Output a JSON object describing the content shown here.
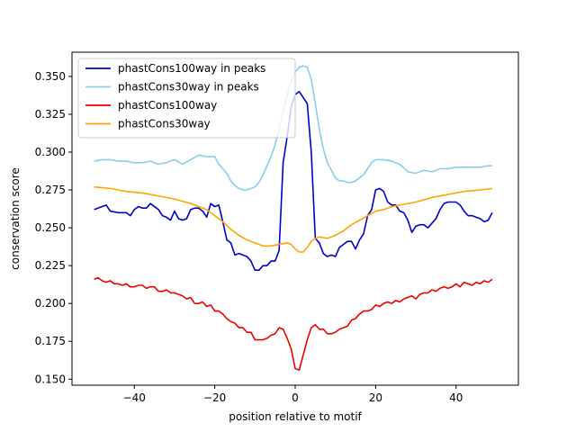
{
  "chart_data": {
    "type": "line",
    "title": "",
    "xlabel": "position relative to motif",
    "ylabel": "conservation score",
    "xlim": [
      -55.5,
      55.5
    ],
    "ylim": [
      0.146,
      0.366
    ],
    "xticks": [
      -40,
      -20,
      0,
      20,
      40
    ],
    "yticks": [
      0.15,
      0.175,
      0.2,
      0.225,
      0.25,
      0.275,
      0.3,
      0.325,
      0.35
    ],
    "ytick_labels": [
      "0.150",
      "0.175",
      "0.200",
      "0.225",
      "0.250",
      "0.275",
      "0.300",
      "0.325",
      "0.350"
    ],
    "grid": false,
    "legend_position": "top-left",
    "series": [
      {
        "name": "phastCons100way in peaks",
        "color": "#0000cd",
        "points": [
          [
            -50,
            0.262
          ],
          [
            -48,
            0.264
          ],
          [
            -47,
            0.265
          ],
          [
            -46,
            0.261
          ],
          [
            -44,
            0.26
          ],
          [
            -42,
            0.26
          ],
          [
            -41,
            0.258
          ],
          [
            -40,
            0.262
          ],
          [
            -39,
            0.264
          ],
          [
            -38,
            0.263
          ],
          [
            -37,
            0.263
          ],
          [
            -36,
            0.266
          ],
          [
            -35,
            0.264
          ],
          [
            -34,
            0.262
          ],
          [
            -33,
            0.258
          ],
          [
            -32,
            0.257
          ],
          [
            -31,
            0.255
          ],
          [
            -30,
            0.261
          ],
          [
            -29,
            0.256
          ],
          [
            -28,
            0.255
          ],
          [
            -27,
            0.256
          ],
          [
            -26,
            0.262
          ],
          [
            -25,
            0.263
          ],
          [
            -24,
            0.263
          ],
          [
            -23,
            0.261
          ],
          [
            -22,
            0.257
          ],
          [
            -21,
            0.266
          ],
          [
            -20,
            0.264
          ],
          [
            -19,
            0.265
          ],
          [
            -18,
            0.254
          ],
          [
            -17,
            0.242
          ],
          [
            -16,
            0.24
          ],
          [
            -15,
            0.232
          ],
          [
            -14,
            0.233
          ],
          [
            -13,
            0.232
          ],
          [
            -12,
            0.231
          ],
          [
            -11,
            0.228
          ],
          [
            -10,
            0.222
          ],
          [
            -9,
            0.222
          ],
          [
            -8,
            0.225
          ],
          [
            -7,
            0.225
          ],
          [
            -6,
            0.228
          ],
          [
            -5,
            0.228
          ],
          [
            -4,
            0.235
          ],
          [
            -3,
            0.293
          ],
          [
            -2,
            0.31
          ],
          [
            -1,
            0.33
          ],
          [
            0,
            0.338
          ],
          [
            1,
            0.34
          ],
          [
            2,
            0.336
          ],
          [
            3,
            0.332
          ],
          [
            4,
            0.3
          ],
          [
            5,
            0.243
          ],
          [
            6,
            0.24
          ],
          [
            7,
            0.233
          ],
          [
            8,
            0.231
          ],
          [
            9,
            0.232
          ],
          [
            10,
            0.231
          ],
          [
            11,
            0.237
          ],
          [
            12,
            0.239
          ],
          [
            13,
            0.241
          ],
          [
            14,
            0.241
          ],
          [
            15,
            0.236
          ],
          [
            16,
            0.242
          ],
          [
            17,
            0.246
          ],
          [
            18,
            0.258
          ],
          [
            19,
            0.262
          ],
          [
            20,
            0.275
          ],
          [
            21,
            0.276
          ],
          [
            22,
            0.274
          ],
          [
            23,
            0.267
          ],
          [
            24,
            0.265
          ],
          [
            25,
            0.265
          ],
          [
            26,
            0.261
          ],
          [
            27,
            0.26
          ],
          [
            28,
            0.255
          ],
          [
            29,
            0.247
          ],
          [
            30,
            0.251
          ],
          [
            31,
            0.252
          ],
          [
            32,
            0.252
          ],
          [
            33,
            0.25
          ],
          [
            34,
            0.253
          ],
          [
            35,
            0.256
          ],
          [
            36,
            0.262
          ],
          [
            37,
            0.266
          ],
          [
            38,
            0.267
          ],
          [
            39,
            0.267
          ],
          [
            40,
            0.267
          ],
          [
            41,
            0.265
          ],
          [
            42,
            0.261
          ],
          [
            43,
            0.258
          ],
          [
            44,
            0.258
          ],
          [
            45,
            0.257
          ],
          [
            46,
            0.256
          ],
          [
            47,
            0.254
          ],
          [
            48,
            0.255
          ],
          [
            49,
            0.26
          ]
        ]
      },
      {
        "name": "phastCons30way in peaks",
        "color": "#87ceeb",
        "points": [
          [
            -50,
            0.294
          ],
          [
            -48,
            0.295
          ],
          [
            -46,
            0.295
          ],
          [
            -44,
            0.294
          ],
          [
            -42,
            0.294
          ],
          [
            -40,
            0.293
          ],
          [
            -38,
            0.293
          ],
          [
            -36,
            0.294
          ],
          [
            -34,
            0.292
          ],
          [
            -32,
            0.293
          ],
          [
            -30,
            0.295
          ],
          [
            -28,
            0.292
          ],
          [
            -26,
            0.295
          ],
          [
            -24,
            0.298
          ],
          [
            -22,
            0.297
          ],
          [
            -20,
            0.297
          ],
          [
            -19,
            0.292
          ],
          [
            -18,
            0.289
          ],
          [
            -17,
            0.286
          ],
          [
            -16,
            0.281
          ],
          [
            -15,
            0.278
          ],
          [
            -14,
            0.276
          ],
          [
            -13,
            0.275
          ],
          [
            -12,
            0.275
          ],
          [
            -11,
            0.276
          ],
          [
            -10,
            0.277
          ],
          [
            -9,
            0.28
          ],
          [
            -8,
            0.285
          ],
          [
            -7,
            0.291
          ],
          [
            -6,
            0.297
          ],
          [
            -5,
            0.305
          ],
          [
            -4,
            0.315
          ],
          [
            -3,
            0.327
          ],
          [
            -2,
            0.338
          ],
          [
            -1,
            0.347
          ],
          [
            0,
            0.353
          ],
          [
            1,
            0.356
          ],
          [
            2,
            0.357
          ],
          [
            3,
            0.356
          ],
          [
            4,
            0.348
          ],
          [
            5,
            0.332
          ],
          [
            6,
            0.315
          ],
          [
            7,
            0.302
          ],
          [
            8,
            0.293
          ],
          [
            9,
            0.288
          ],
          [
            10,
            0.283
          ],
          [
            11,
            0.281
          ],
          [
            12,
            0.281
          ],
          [
            13,
            0.28
          ],
          [
            14,
            0.28
          ],
          [
            15,
            0.281
          ],
          [
            16,
            0.283
          ],
          [
            17,
            0.285
          ],
          [
            18,
            0.289
          ],
          [
            19,
            0.293
          ],
          [
            20,
            0.295
          ],
          [
            22,
            0.295
          ],
          [
            24,
            0.294
          ],
          [
            26,
            0.292
          ],
          [
            28,
            0.287
          ],
          [
            30,
            0.286
          ],
          [
            32,
            0.288
          ],
          [
            34,
            0.287
          ],
          [
            36,
            0.289
          ],
          [
            38,
            0.289
          ],
          [
            40,
            0.29
          ],
          [
            42,
            0.29
          ],
          [
            44,
            0.29
          ],
          [
            46,
            0.29
          ],
          [
            48,
            0.291
          ],
          [
            49,
            0.291
          ]
        ]
      },
      {
        "name": "phastCons100way",
        "color": "#ee0000",
        "points": [
          [
            -50,
            0.216
          ],
          [
            -49,
            0.217
          ],
          [
            -48,
            0.215
          ],
          [
            -47,
            0.214
          ],
          [
            -46,
            0.215
          ],
          [
            -45,
            0.213
          ],
          [
            -44,
            0.213
          ],
          [
            -43,
            0.212
          ],
          [
            -42,
            0.213
          ],
          [
            -41,
            0.211
          ],
          [
            -40,
            0.211
          ],
          [
            -39,
            0.212
          ],
          [
            -38,
            0.212
          ],
          [
            -37,
            0.21
          ],
          [
            -36,
            0.211
          ],
          [
            -35,
            0.211
          ],
          [
            -34,
            0.208
          ],
          [
            -33,
            0.208
          ],
          [
            -32,
            0.209
          ],
          [
            -31,
            0.207
          ],
          [
            -30,
            0.207
          ],
          [
            -29,
            0.206
          ],
          [
            -28,
            0.205
          ],
          [
            -27,
            0.203
          ],
          [
            -26,
            0.204
          ],
          [
            -25,
            0.2
          ],
          [
            -24,
            0.2
          ],
          [
            -23,
            0.201
          ],
          [
            -22,
            0.198
          ],
          [
            -21,
            0.199
          ],
          [
            -20,
            0.195
          ],
          [
            -19,
            0.195
          ],
          [
            -18,
            0.193
          ],
          [
            -17,
            0.19
          ],
          [
            -16,
            0.188
          ],
          [
            -15,
            0.187
          ],
          [
            -14,
            0.184
          ],
          [
            -13,
            0.184
          ],
          [
            -12,
            0.181
          ],
          [
            -11,
            0.181
          ],
          [
            -10,
            0.176
          ],
          [
            -9,
            0.176
          ],
          [
            -8,
            0.176
          ],
          [
            -7,
            0.177
          ],
          [
            -6,
            0.179
          ],
          [
            -5,
            0.18
          ],
          [
            -4,
            0.184
          ],
          [
            -3,
            0.183
          ],
          [
            -2,
            0.177
          ],
          [
            -1,
            0.17
          ],
          [
            0,
            0.157
          ],
          [
            1,
            0.156
          ],
          [
            2,
            0.166
          ],
          [
            3,
            0.176
          ],
          [
            4,
            0.184
          ],
          [
            5,
            0.186
          ],
          [
            6,
            0.183
          ],
          [
            7,
            0.183
          ],
          [
            8,
            0.18
          ],
          [
            9,
            0.18
          ],
          [
            10,
            0.181
          ],
          [
            11,
            0.183
          ],
          [
            12,
            0.184
          ],
          [
            13,
            0.185
          ],
          [
            14,
            0.189
          ],
          [
            15,
            0.19
          ],
          [
            16,
            0.193
          ],
          [
            17,
            0.195
          ],
          [
            18,
            0.195
          ],
          [
            19,
            0.196
          ],
          [
            20,
            0.199
          ],
          [
            21,
            0.198
          ],
          [
            22,
            0.2
          ],
          [
            23,
            0.201
          ],
          [
            24,
            0.2
          ],
          [
            25,
            0.202
          ],
          [
            26,
            0.201
          ],
          [
            27,
            0.203
          ],
          [
            28,
            0.204
          ],
          [
            29,
            0.205
          ],
          [
            30,
            0.203
          ],
          [
            31,
            0.206
          ],
          [
            32,
            0.207
          ],
          [
            33,
            0.207
          ],
          [
            34,
            0.209
          ],
          [
            35,
            0.208
          ],
          [
            36,
            0.21
          ],
          [
            37,
            0.211
          ],
          [
            38,
            0.21
          ],
          [
            39,
            0.211
          ],
          [
            40,
            0.213
          ],
          [
            41,
            0.211
          ],
          [
            42,
            0.214
          ],
          [
            43,
            0.213
          ],
          [
            44,
            0.212
          ],
          [
            45,
            0.214
          ],
          [
            46,
            0.213
          ],
          [
            47,
            0.215
          ],
          [
            48,
            0.214
          ],
          [
            49,
            0.216
          ]
        ]
      },
      {
        "name": "phastCons30way",
        "color": "#ffa500",
        "points": [
          [
            -50,
            0.277
          ],
          [
            -46,
            0.276
          ],
          [
            -42,
            0.274
          ],
          [
            -38,
            0.273
          ],
          [
            -34,
            0.271
          ],
          [
            -30,
            0.269
          ],
          [
            -26,
            0.266
          ],
          [
            -22,
            0.262
          ],
          [
            -20,
            0.258
          ],
          [
            -18,
            0.254
          ],
          [
            -16,
            0.249
          ],
          [
            -14,
            0.245
          ],
          [
            -12,
            0.242
          ],
          [
            -10,
            0.24
          ],
          [
            -8,
            0.238
          ],
          [
            -6,
            0.238
          ],
          [
            -4,
            0.239
          ],
          [
            -2,
            0.24
          ],
          [
            -1,
            0.239
          ],
          [
            0,
            0.236
          ],
          [
            1,
            0.234
          ],
          [
            2,
            0.234
          ],
          [
            3,
            0.237
          ],
          [
            4,
            0.241
          ],
          [
            5,
            0.243
          ],
          [
            6,
            0.244
          ],
          [
            8,
            0.243
          ],
          [
            10,
            0.245
          ],
          [
            12,
            0.248
          ],
          [
            14,
            0.252
          ],
          [
            16,
            0.255
          ],
          [
            18,
            0.258
          ],
          [
            20,
            0.261
          ],
          [
            22,
            0.262
          ],
          [
            24,
            0.264
          ],
          [
            26,
            0.265
          ],
          [
            30,
            0.267
          ],
          [
            34,
            0.27
          ],
          [
            38,
            0.272
          ],
          [
            42,
            0.274
          ],
          [
            46,
            0.275
          ],
          [
            49,
            0.276
          ]
        ]
      }
    ]
  }
}
